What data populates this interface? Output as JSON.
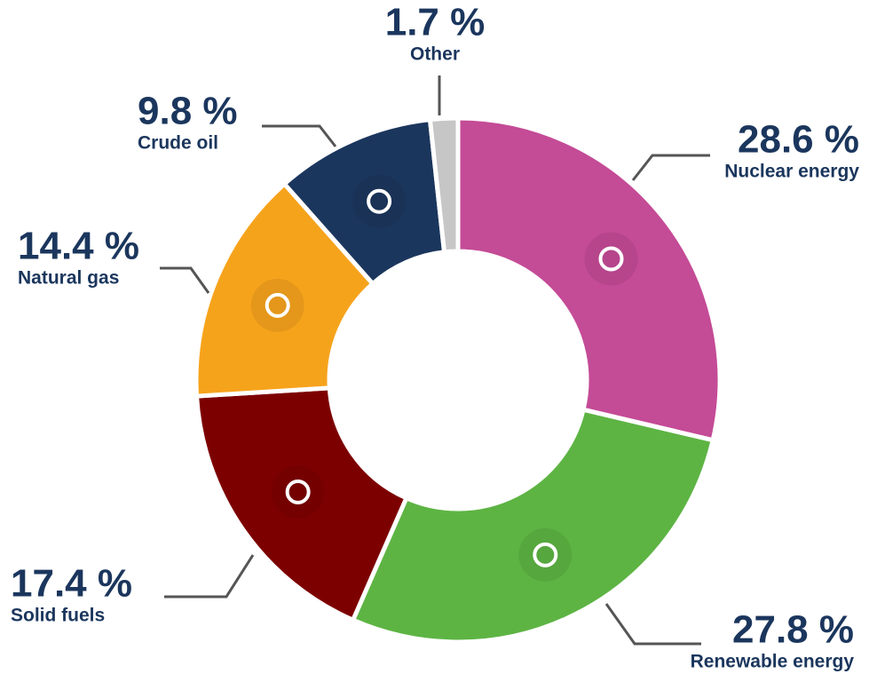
{
  "chart_data": {
    "type": "pie",
    "donut": true,
    "categories": [
      "Nuclear energy",
      "Renewable energy",
      "Solid fuels",
      "Natural gas",
      "Crude oil",
      "Other"
    ],
    "values": [
      28.6,
      27.8,
      17.4,
      14.4,
      9.8,
      1.7
    ],
    "value_labels": [
      "28.6 %",
      "27.8 %",
      "17.4 %",
      "14.4 %",
      "9.8 %",
      "1.7 %"
    ],
    "colors": [
      "#c44b96",
      "#5db443",
      "#7d0000",
      "#f6a31c",
      "#1b365d",
      "#c6c6c6"
    ]
  }
}
